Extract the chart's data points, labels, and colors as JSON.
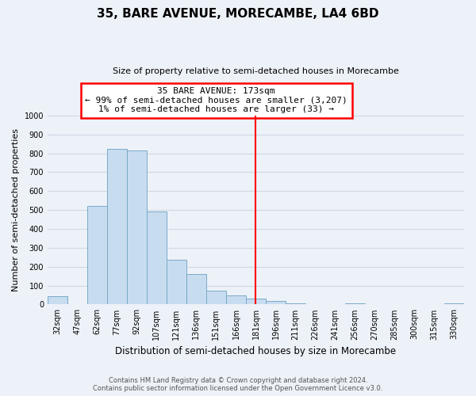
{
  "title": "35, BARE AVENUE, MORECAMBE, LA4 6BD",
  "subtitle": "Size of property relative to semi-detached houses in Morecambe",
  "xlabel": "Distribution of semi-detached houses by size in Morecambe",
  "ylabel": "Number of semi-detached properties",
  "bin_labels": [
    "32sqm",
    "47sqm",
    "62sqm",
    "77sqm",
    "92sqm",
    "107sqm",
    "121sqm",
    "136sqm",
    "151sqm",
    "166sqm",
    "181sqm",
    "196sqm",
    "211sqm",
    "226sqm",
    "241sqm",
    "256sqm",
    "270sqm",
    "285sqm",
    "300sqm",
    "315sqm",
    "330sqm"
  ],
  "bin_values": [
    43,
    0,
    520,
    825,
    815,
    493,
    235,
    163,
    75,
    46,
    30,
    17,
    5,
    0,
    0,
    5,
    0,
    0,
    0,
    0,
    5
  ],
  "bar_color": "#c8dcf0",
  "bar_edge_color": "#7aaac8",
  "vline_bin_index": 10,
  "annotation_line1": "35 BARE AVENUE: 173sqm",
  "annotation_line2": "← 99% of semi-detached houses are smaller (3,207)",
  "annotation_line3": "1% of semi-detached houses are larger (33) →",
  "ylim": [
    0,
    1000
  ],
  "yticks": [
    0,
    100,
    200,
    300,
    400,
    500,
    600,
    700,
    800,
    900,
    1000
  ],
  "footer_line1": "Contains HM Land Registry data © Crown copyright and database right 2024.",
  "footer_line2": "Contains public sector information licensed under the Open Government Licence v3.0.",
  "background_color": "#edf2f8",
  "grid_color": "#d0d8e4"
}
